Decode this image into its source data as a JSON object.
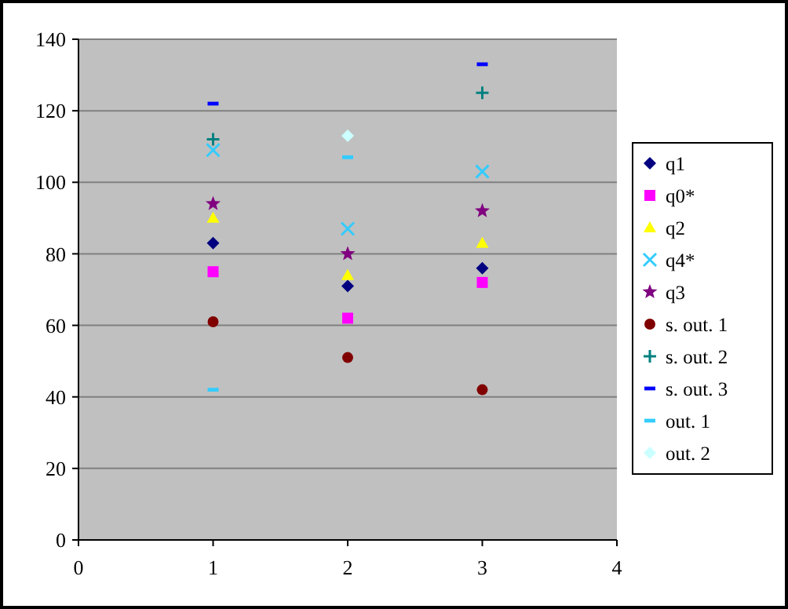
{
  "chart_data": {
    "type": "scatter",
    "x": [
      1,
      2,
      3
    ],
    "xlim": [
      0,
      4
    ],
    "xticks": [
      0,
      1,
      2,
      3,
      4
    ],
    "ylim": [
      0,
      140
    ],
    "yticks": [
      0,
      20,
      40,
      60,
      80,
      100,
      120,
      140
    ],
    "grid": "y",
    "legend": "right",
    "series": [
      {
        "name": "q1",
        "color": "#000080",
        "marker": "diamond",
        "values": [
          83,
          71,
          76
        ]
      },
      {
        "name": "q0*",
        "color": "#ff00ff",
        "marker": "square",
        "values": [
          75,
          62,
          72
        ]
      },
      {
        "name": "q2",
        "color": "#ffff00",
        "marker": "triangle",
        "values": [
          90,
          74,
          83
        ]
      },
      {
        "name": "q4*",
        "color": "#33ccff",
        "marker": "cross",
        "values": [
          109,
          87,
          103
        ]
      },
      {
        "name": "q3",
        "color": "#800080",
        "marker": "star",
        "values": [
          94,
          80,
          92
        ]
      },
      {
        "name": "s. out. 1",
        "color": "#800000",
        "marker": "circle",
        "values": [
          61,
          51,
          42
        ]
      },
      {
        "name": "s. out. 2",
        "color": "#008080",
        "marker": "plus",
        "values": [
          112,
          null,
          125
        ]
      },
      {
        "name": "s. out. 3",
        "color": "#0000ff",
        "values": [
          122,
          null,
          133
        ]
      },
      {
        "name": "out. 1",
        "color": "#33ccff",
        "values": [
          42,
          107,
          null
        ]
      },
      {
        "name": "out. 2",
        "color": "#ccffff",
        "marker": "diamond",
        "values": [
          null,
          113,
          null
        ]
      }
    ]
  }
}
